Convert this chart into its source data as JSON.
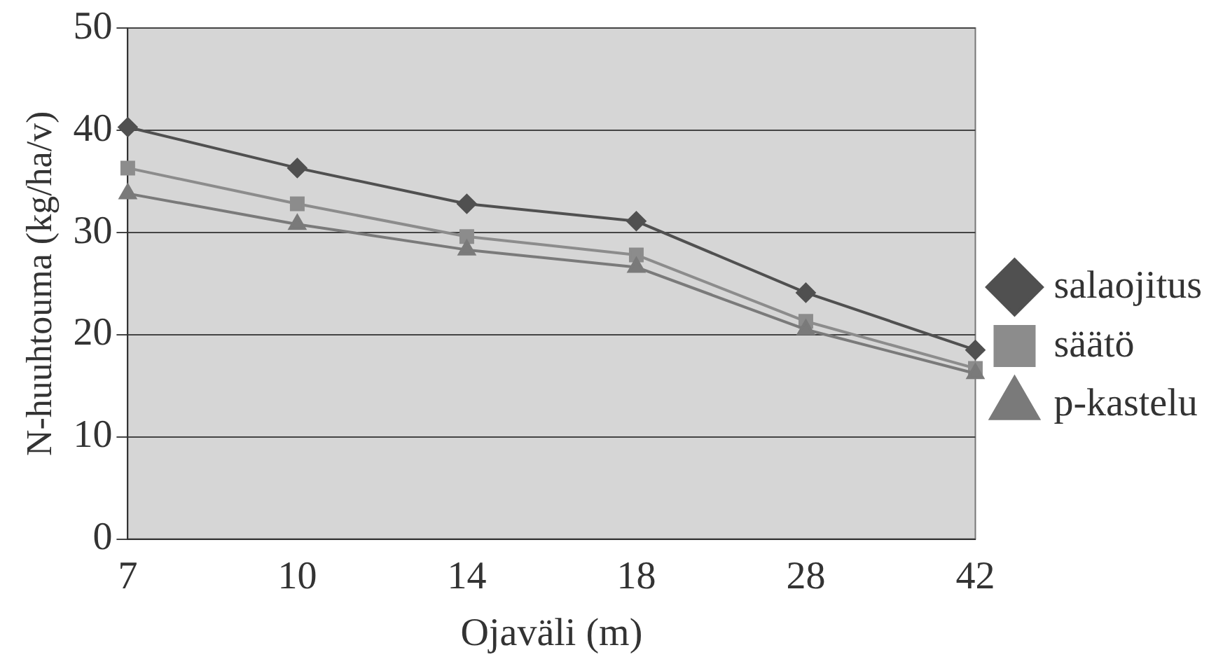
{
  "chart_data": {
    "type": "line",
    "xlabel": "Ojaväli (m)",
    "ylabel": "N-huuhtouma (kg/ha/v)",
    "categories": [
      "7",
      "10",
      "14",
      "18",
      "28",
      "42"
    ],
    "series": [
      {
        "name": "salaojitus",
        "color": "#505050",
        "marker": "diamond",
        "values": [
          40.3,
          36.3,
          32.8,
          31.1,
          24.1,
          18.5
        ]
      },
      {
        "name": "säätö",
        "color": "#8c8c8c",
        "marker": "square",
        "values": [
          36.3,
          32.8,
          29.6,
          27.8,
          21.3,
          16.7
        ]
      },
      {
        "name": "p-kastelu",
        "color": "#7a7a7a",
        "marker": "triangle",
        "values": [
          33.8,
          30.8,
          28.3,
          26.6,
          20.5,
          16.2
        ]
      }
    ],
    "ylim": [
      0,
      50
    ],
    "yticks": [
      0,
      10,
      20,
      30,
      40,
      50
    ],
    "grid": "y",
    "legend": "right",
    "line_style": "solid"
  }
}
